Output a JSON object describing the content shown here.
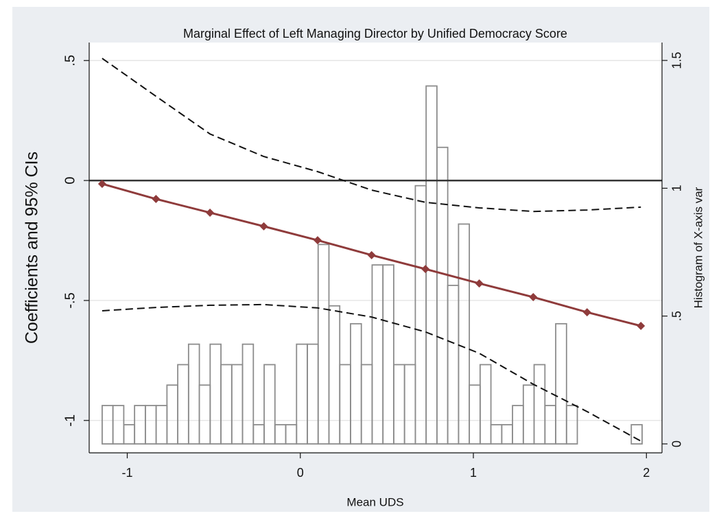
{
  "chart_data": {
    "type": "line",
    "title": "Marginal Effect of Left Managing Director by Unified Democracy Score",
    "xlabel": "Mean UDS",
    "ylabel": "Coefficients and 95% CIs",
    "y2label": "Histogram of X-axis var",
    "x": [
      -1.145,
      -0.834,
      -0.522,
      -0.211,
      0.1,
      0.412,
      0.723,
      1.034,
      1.346,
      1.657,
      1.968
    ],
    "series": [
      {
        "color": "#8f3b3b",
        "style": "solid",
        "marker": "diamond",
        "values": [
          -0.014,
          -0.077,
          -0.134,
          -0.191,
          -0.249,
          -0.311,
          -0.369,
          -0.429,
          -0.486,
          -0.549,
          -0.606
        ]
      },
      {
        "color": "#111111",
        "style": "dashed",
        "marker": "none",
        "values": [
          0.509,
          0.351,
          0.194,
          0.1,
          0.037,
          -0.04,
          -0.091,
          -0.114,
          -0.129,
          -0.123,
          -0.111
        ]
      },
      {
        "color": "#111111",
        "style": "dashed",
        "marker": "none",
        "values": [
          -0.543,
          -0.529,
          -0.52,
          -0.517,
          -0.531,
          -0.569,
          -0.631,
          -0.72,
          -0.849,
          -0.963,
          -1.086
        ]
      }
    ],
    "histogram": {
      "type": "histogram",
      "axis": "y2",
      "color": "#8c8c8c",
      "bins": [
        -1.145,
        -1.0826,
        -1.0202,
        -0.9578,
        -0.8954,
        -0.833,
        -0.7706,
        -0.7082,
        -0.6458,
        -0.5834,
        -0.521,
        -0.4586,
        -0.3962,
        -0.3338,
        -0.2714,
        -0.209,
        -0.1466,
        -0.0842,
        -0.0218,
        0.0406,
        0.103,
        0.1654,
        0.2278,
        0.2902,
        0.3526,
        0.415,
        0.4774,
        0.5398,
        0.6022,
        0.6646,
        0.727,
        0.7894,
        0.8518,
        0.9142,
        0.9766,
        1.039,
        1.1014,
        1.1638,
        1.2262,
        1.2886,
        1.351,
        1.4134,
        1.4758,
        1.5382,
        1.6006,
        1.663,
        1.7254,
        1.7878,
        1.8502,
        1.9126,
        1.975
      ],
      "counts": [
        0.15,
        0.15,
        0.075,
        0.15,
        0.15,
        0.15,
        0.23,
        0.31,
        0.39,
        0.23,
        0.39,
        0.31,
        0.31,
        0.39,
        0.075,
        0.31,
        0.075,
        0.075,
        0.39,
        0.39,
        0.78,
        0.54,
        0.31,
        0.47,
        0.31,
        0.7,
        0.7,
        0.31,
        0.31,
        1.01,
        1.4,
        1.16,
        0.62,
        0.86,
        0.23,
        0.31,
        0.075,
        0.075,
        0.15,
        0.23,
        0.31,
        0.15,
        0.47,
        0.15,
        0,
        0,
        0,
        0,
        0,
        0.075
      ]
    },
    "reference_line": {
      "value": 0,
      "color": "#333333"
    },
    "xlim": [
      -1.22,
      2.09
    ],
    "xticks": [
      -1,
      0,
      1,
      2
    ],
    "ylim": [
      -1.135,
      0.575
    ],
    "yticks": [
      -1,
      {
        "value": -0.5,
        "label": "-.5"
      },
      0,
      {
        "value": 0.5,
        "label": ".5"
      }
    ],
    "y2lim": [
      -0.035,
      1.57
    ],
    "y2ticks": [
      0,
      {
        "value": 0.5,
        "label": ".5"
      },
      1,
      1.5
    ],
    "grid": true
  }
}
